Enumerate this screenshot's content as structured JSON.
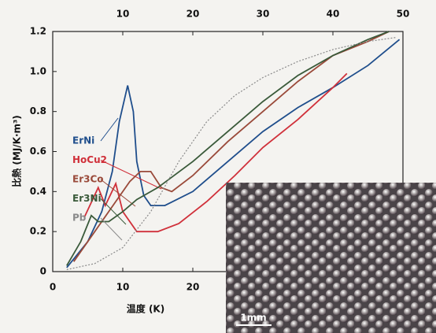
{
  "chart_data": {
    "type": "line",
    "xlabel": "温度 (K)",
    "ylabel": "比熱 (MJ/K·m³)",
    "xlim": [
      0,
      50
    ],
    "xticks": [
      0,
      10,
      20
    ],
    "x2lim": [
      0,
      50
    ],
    "x2ticks": [
      10,
      20,
      30,
      40,
      50
    ],
    "ylim": [
      0,
      1.2
    ],
    "yticks": [
      0,
      0.2,
      0.4,
      0.6,
      0.8,
      {
        "value": 1,
        "label": "1.0"
      },
      1.2
    ],
    "series": [
      {
        "name": "ErNi",
        "color": "#1f4e8c",
        "x": [
          2,
          5,
          7,
          8.5,
          9.5,
          10.7,
          11.5,
          12,
          13,
          14,
          16,
          20,
          25,
          30,
          35,
          40,
          45,
          49.5
        ],
        "values": [
          0.02,
          0.15,
          0.3,
          0.5,
          0.75,
          0.93,
          0.8,
          0.55,
          0.38,
          0.33,
          0.33,
          0.4,
          0.55,
          0.7,
          0.82,
          0.92,
          1.03,
          1.16
        ]
      },
      {
        "name": "HoCu2",
        "color": "#d0303a",
        "x": [
          4.5,
          6.5,
          7.5,
          9,
          10,
          12,
          15,
          18,
          22,
          26,
          30,
          35,
          40,
          42
        ],
        "values": [
          0.27,
          0.42,
          0.33,
          0.44,
          0.3,
          0.2,
          0.2,
          0.24,
          0.35,
          0.48,
          0.62,
          0.76,
          0.92,
          0.99
        ]
      },
      {
        "name": "Er3Co",
        "color": "#9a4a3a",
        "x": [
          3,
          6,
          9,
          11,
          12.5,
          14,
          15.5,
          17,
          20,
          25,
          30,
          35,
          40,
          45,
          48
        ],
        "values": [
          0.05,
          0.2,
          0.35,
          0.45,
          0.5,
          0.5,
          0.42,
          0.4,
          0.48,
          0.65,
          0.8,
          0.95,
          1.08,
          1.15,
          1.2
        ]
      },
      {
        "name": "Er3Ni",
        "color": "#3a5a3a",
        "x": [
          2,
          4,
          5.5,
          6.5,
          8,
          10,
          12,
          15,
          20,
          25,
          30,
          35,
          40,
          45,
          48
        ],
        "values": [
          0.03,
          0.15,
          0.28,
          0.25,
          0.25,
          0.3,
          0.36,
          0.42,
          0.55,
          0.7,
          0.85,
          0.98,
          1.08,
          1.16,
          1.2
        ]
      },
      {
        "name": "Pb",
        "color": "#8a8a8a",
        "dashed": true,
        "x": [
          2,
          6,
          10,
          14,
          18,
          22,
          26,
          30,
          35,
          40,
          45,
          49
        ],
        "values": [
          0.01,
          0.04,
          0.12,
          0.3,
          0.55,
          0.75,
          0.88,
          0.97,
          1.05,
          1.11,
          1.15,
          1.17
        ]
      }
    ],
    "scale_bar": "1mm"
  }
}
